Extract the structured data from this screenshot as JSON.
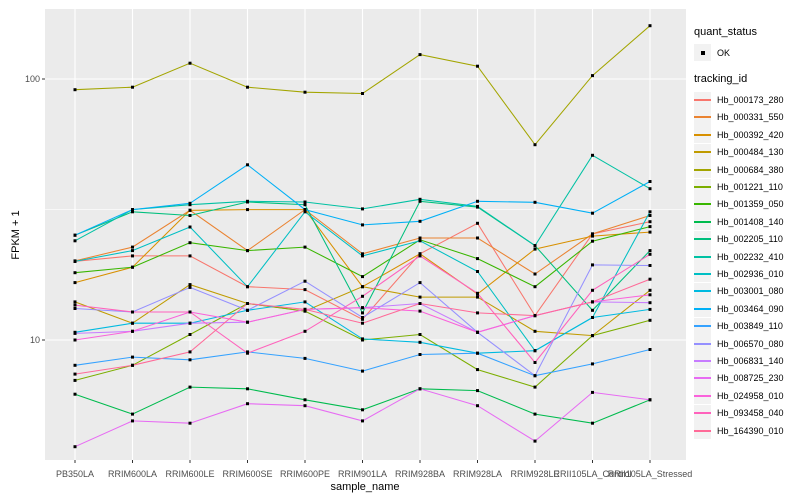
{
  "y_axis": {
    "title": "FPKM + 1"
  },
  "x_axis": {
    "title": "sample_name"
  },
  "legend": {
    "quant_status": {
      "title": "quant_status",
      "items": [
        {
          "label": "OK",
          "symbol": "black-point"
        }
      ]
    },
    "tracking_id": {
      "title": "tracking_id"
    }
  },
  "colors": {
    "panel_bg": "#EBEBEB",
    "grid_major": "#FFFFFF",
    "grid_minor": "#FFFFFF",
    "tick_mark": "#333333",
    "tick_label": "#4D4D4D",
    "point": "#000000",
    "legend_key_bg": "#F2F2F2"
  },
  "chart_data": {
    "type": "line",
    "title": "",
    "xlabel": "sample_name",
    "ylabel": "FPKM + 1",
    "y_scale": "log10",
    "ylim": [
      3.5,
      185
    ],
    "yticks": [
      100,
      10
    ],
    "ytick_labels": [
      "100",
      "10"
    ],
    "y_minor_breaks": [
      31.6
    ],
    "grid": true,
    "legend_position": "right",
    "marker": "black-square-point",
    "categories": [
      "PB350LA",
      "RRIM600LA",
      "RRIM600LE",
      "RRIM600SE",
      "RRIM600PE",
      "RRIM901LA",
      "RRIM928BA",
      "RRIM928LA",
      "RRIM928LE",
      "RRII105LA_Control",
      "RRII105LA_Stressed"
    ],
    "series": [
      {
        "name": "Hb_000173_280",
        "color": "#F8766D",
        "values": [
          20,
          21,
          21,
          16,
          15.6,
          12,
          21.4,
          28,
          12.4,
          25.5,
          28.4
        ]
      },
      {
        "name": "Hb_000331_550",
        "color": "#EA8331",
        "values": [
          20.1,
          22.7,
          31.4,
          22,
          31.6,
          21.4,
          24.6,
          24.6,
          17.9,
          25.5,
          30
        ]
      },
      {
        "name": "Hb_000392_420",
        "color": "#D89000",
        "values": [
          16.6,
          19,
          31.4,
          31.6,
          31.6,
          16,
          21.4,
          15,
          22.3,
          25,
          25.9
        ]
      },
      {
        "name": "Hb_000484_130",
        "color": "#C09B00",
        "values": [
          14,
          11.6,
          16.3,
          13.8,
          12.9,
          16,
          14.6,
          14.6,
          10.8,
          10.4,
          15.5
        ]
      },
      {
        "name": "Hb_000684_380",
        "color": "#A3A500",
        "values": [
          91,
          93,
          115,
          93,
          89,
          88,
          124,
          112,
          56,
          103,
          160
        ]
      },
      {
        "name": "Hb_001221_110",
        "color": "#7CAE00",
        "values": [
          7,
          8,
          10.5,
          13.8,
          12.9,
          10,
          10.5,
          7.7,
          6.6,
          10.4,
          11.9
        ]
      },
      {
        "name": "Hb_001359_050",
        "color": "#39B600",
        "values": [
          18.1,
          19,
          23.6,
          22,
          22.7,
          17.5,
          24.2,
          20.5,
          16,
          23.9,
          27.2
        ]
      },
      {
        "name": "Hb_001408_140",
        "color": "#00BB4E",
        "values": [
          6.2,
          5.2,
          6.6,
          6.5,
          5.9,
          5.4,
          6.5,
          6.4,
          5.2,
          4.8,
          5.9
        ]
      },
      {
        "name": "Hb_002205_110",
        "color": "#00BF7D",
        "values": [
          25.2,
          31,
          30,
          33.8,
          33,
          12.7,
          34,
          32.3,
          23,
          13,
          22
        ]
      },
      {
        "name": "Hb_002232_410",
        "color": "#00C1A3",
        "values": [
          24,
          31.6,
          33,
          34,
          33.8,
          31.8,
          34.6,
          32.5,
          23,
          51,
          38
        ]
      },
      {
        "name": "Hb_002936_010",
        "color": "#00BFC4",
        "values": [
          20,
          22,
          27.1,
          16,
          31,
          21,
          24,
          18.3,
          9.1,
          12.2,
          31
        ]
      },
      {
        "name": "Hb_003001_080",
        "color": "#00BAE0",
        "values": [
          10.7,
          11.6,
          11.6,
          13,
          14,
          10.1,
          9.8,
          8.9,
          9.1,
          12.2,
          13.1
        ]
      },
      {
        "name": "Hb_003464_090",
        "color": "#00B0F6",
        "values": [
          25.2,
          31.6,
          33.4,
          46.9,
          31.6,
          27.6,
          28.5,
          34,
          33.7,
          30.6,
          40.5
        ]
      },
      {
        "name": "Hb_003849_110",
        "color": "#35A2FF",
        "values": [
          8,
          8.6,
          8.4,
          9,
          8.5,
          7.6,
          8.8,
          8.9,
          7.3,
          8.1,
          9.2
        ]
      },
      {
        "name": "Hb_006570_080",
        "color": "#9590FF",
        "values": [
          13.2,
          12.8,
          15.9,
          13,
          16.8,
          12.2,
          16.6,
          10.7,
          7.3,
          19.4,
          19.3
        ]
      },
      {
        "name": "Hb_006831_140",
        "color": "#C77CFF",
        "values": [
          10.6,
          10.8,
          11.6,
          11.7,
          13.1,
          13.3,
          13.8,
          10.7,
          12.4,
          14,
          13.9
        ]
      },
      {
        "name": "Hb_008725_230",
        "color": "#E76BF3",
        "values": [
          3.9,
          4.9,
          4.8,
          5.7,
          5.6,
          4.9,
          6.5,
          5.6,
          4.1,
          6.3,
          5.9
        ]
      },
      {
        "name": "Hb_024958_010",
        "color": "#FA62DB",
        "values": [
          10,
          10.8,
          12.8,
          11.7,
          13.1,
          13.3,
          12.9,
          10.7,
          12.4,
          14,
          14.9
        ]
      },
      {
        "name": "Hb_093458_040",
        "color": "#FF62BC",
        "values": [
          13.6,
          12.8,
          12.8,
          8.9,
          10.8,
          14.7,
          21,
          15.1,
          8.2,
          15.5,
          21.3
        ]
      },
      {
        "name": "Hb_164390_010",
        "color": "#FF6A98",
        "values": [
          7.4,
          8,
          9,
          13.8,
          13.1,
          11.6,
          13.8,
          12.7,
          12.4,
          14,
          17.1
        ]
      }
    ]
  }
}
